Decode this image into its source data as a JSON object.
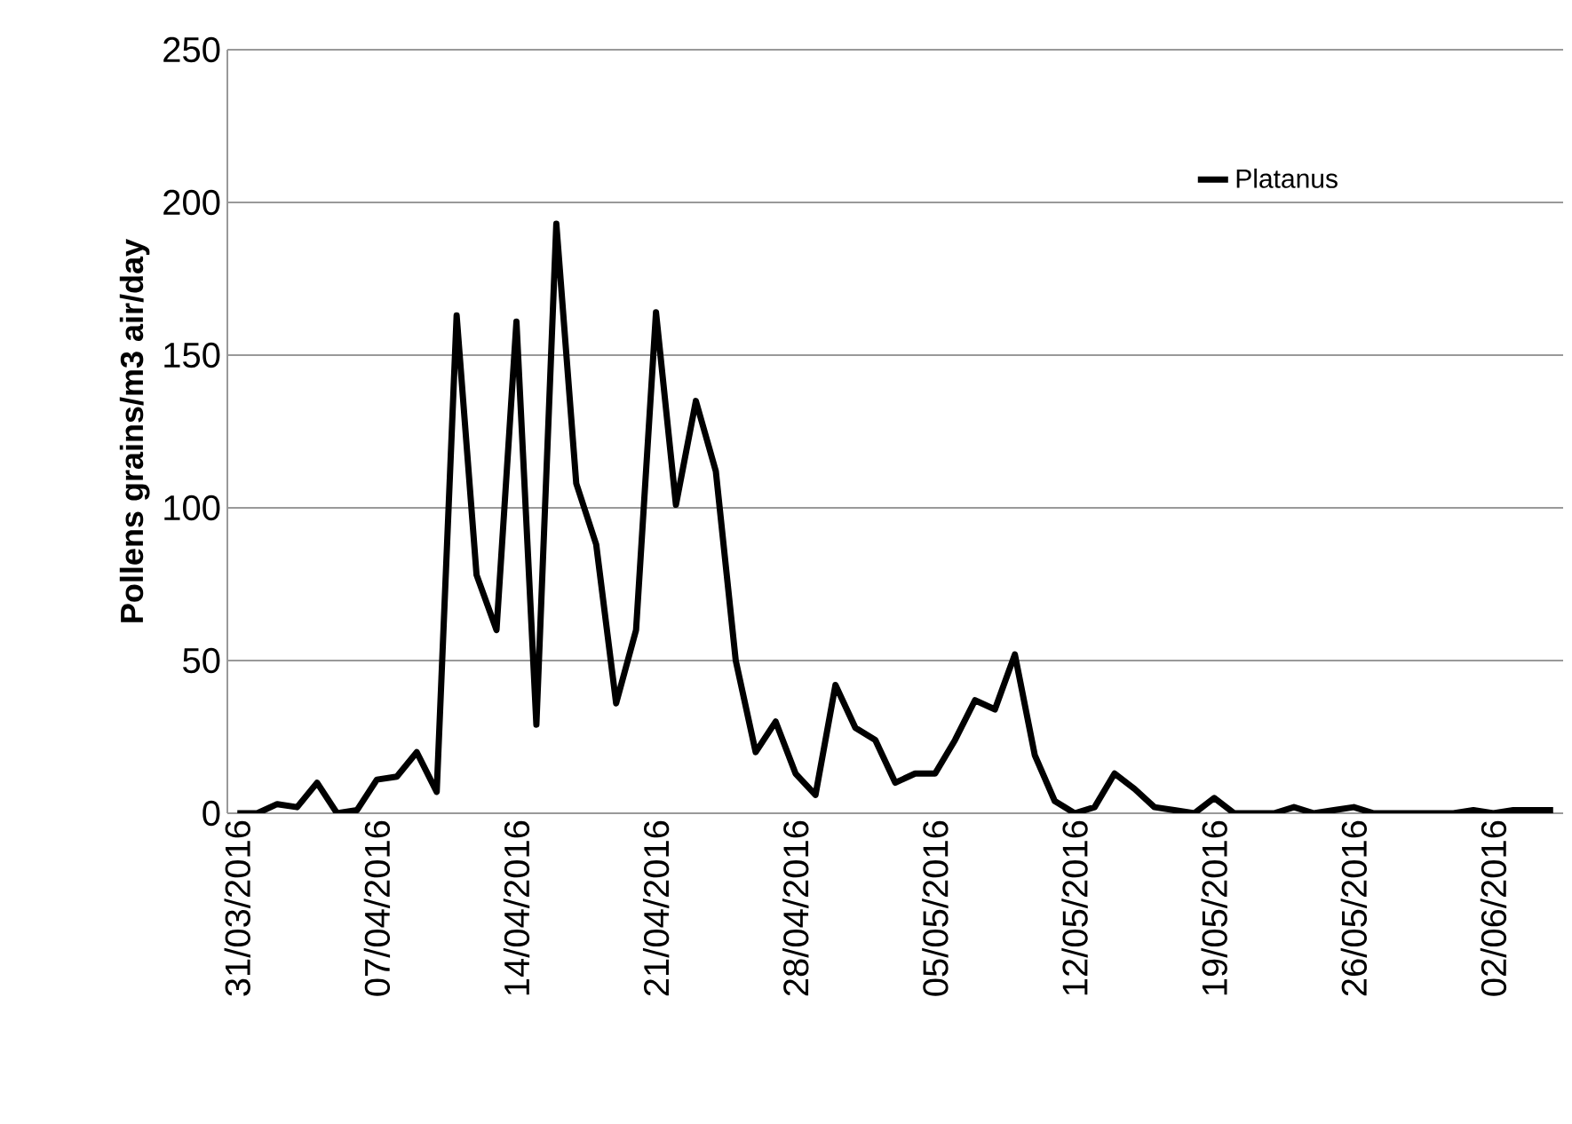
{
  "chart_data": {
    "type": "line",
    "ylabel": "Pollens grains/m3 air/day",
    "x": [
      "2016-03-31",
      "2016-04-01",
      "2016-04-02",
      "2016-04-03",
      "2016-04-04",
      "2016-04-05",
      "2016-04-06",
      "2016-04-07",
      "2016-04-08",
      "2016-04-09",
      "2016-04-10",
      "2016-04-11",
      "2016-04-12",
      "2016-04-13",
      "2016-04-14",
      "2016-04-15",
      "2016-04-16",
      "2016-04-17",
      "2016-04-18",
      "2016-04-19",
      "2016-04-20",
      "2016-04-21",
      "2016-04-22",
      "2016-04-23",
      "2016-04-24",
      "2016-04-25",
      "2016-04-26",
      "2016-04-27",
      "2016-04-28",
      "2016-04-29",
      "2016-04-30",
      "2016-05-01",
      "2016-05-02",
      "2016-05-03",
      "2016-05-04",
      "2016-05-05",
      "2016-05-06",
      "2016-05-07",
      "2016-05-08",
      "2016-05-09",
      "2016-05-10",
      "2016-05-11",
      "2016-05-12",
      "2016-05-13",
      "2016-05-14",
      "2016-05-15",
      "2016-05-16",
      "2016-05-17",
      "2016-05-18",
      "2016-05-19",
      "2016-05-20",
      "2016-05-21",
      "2016-05-22",
      "2016-05-23",
      "2016-05-24",
      "2016-05-25",
      "2016-05-26",
      "2016-05-27",
      "2016-05-28",
      "2016-05-29",
      "2016-05-30",
      "2016-05-31",
      "2016-06-01",
      "2016-06-02",
      "2016-06-03",
      "2016-06-04",
      "2016-06-05"
    ],
    "series": [
      {
        "name": "Platanus",
        "color": "#000000",
        "values": [
          0,
          0,
          3,
          2,
          10,
          0,
          1,
          11,
          12,
          20,
          7,
          163,
          78,
          60,
          161,
          29,
          193,
          108,
          88,
          36,
          60,
          164,
          101,
          135,
          112,
          50,
          20,
          30,
          13,
          6,
          42,
          28,
          24,
          10,
          13,
          13,
          24,
          37,
          34,
          52,
          19,
          4,
          0,
          2,
          13,
          8,
          2,
          1,
          0,
          5,
          0,
          0,
          0,
          2,
          0,
          1,
          2,
          0,
          0,
          0,
          0,
          0,
          1,
          0,
          1,
          1,
          1
        ]
      }
    ],
    "xlim": [
      "2016-03-30T12:00",
      "2016-06-05T12:00"
    ],
    "xticks": [
      {
        "value": "2016-03-31",
        "label": "31/03/2016"
      },
      {
        "value": "2016-04-07",
        "label": "07/04/2016"
      },
      {
        "value": "2016-04-14",
        "label": "14/04/2016"
      },
      {
        "value": "2016-04-21",
        "label": "21/04/2016"
      },
      {
        "value": "2016-04-28",
        "label": "28/04/2016"
      },
      {
        "value": "2016-05-05",
        "label": "05/05/2016"
      },
      {
        "value": "2016-05-12",
        "label": "12/05/2016"
      },
      {
        "value": "2016-05-19",
        "label": "19/05/2016"
      },
      {
        "value": "2016-05-26",
        "label": "26/05/2016"
      },
      {
        "value": "2016-06-02",
        "label": "02/06/2016"
      }
    ],
    "ylim": [
      0,
      250
    ],
    "yticks": [
      0,
      50,
      100,
      150,
      200,
      250
    ],
    "grid": "y",
    "legend": "top right",
    "marker": "none",
    "line_style": "solid"
  }
}
